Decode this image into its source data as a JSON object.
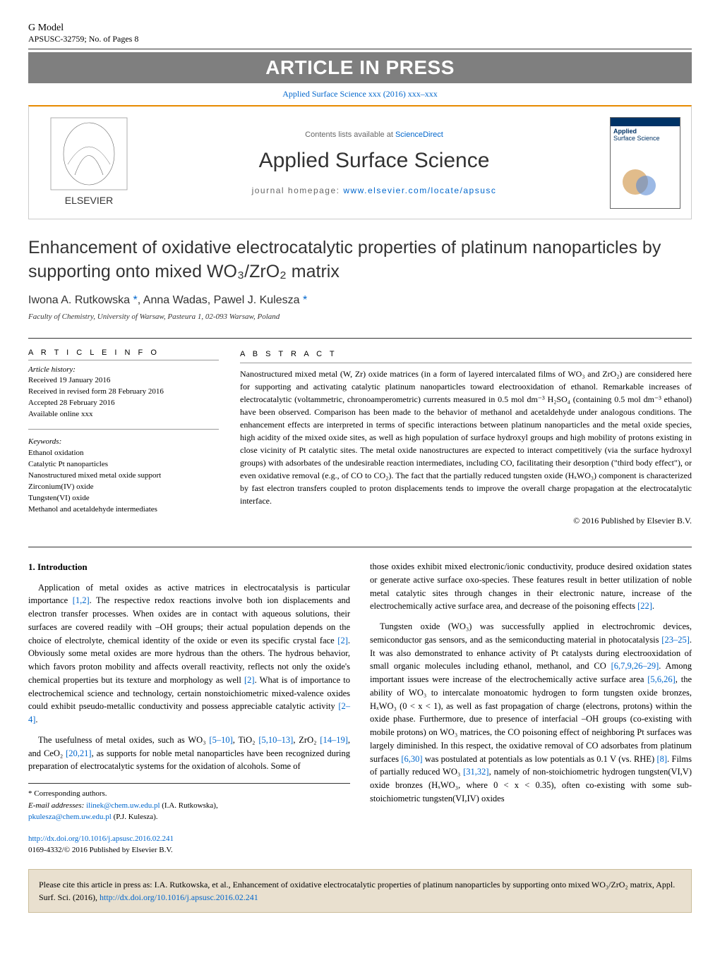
{
  "gmodel": {
    "line1": "G Model",
    "line2": "APSUSC-32759;   No. of Pages 8"
  },
  "press_bar": "ARTICLE IN PRESS",
  "journal_link_top": "Applied Surface Science xxx (2016) xxx–xxx",
  "header": {
    "contents": "Contents lists available at ",
    "contents_link": "ScienceDirect",
    "journal_name": "Applied Surface Science",
    "homepage_label": "journal homepage: ",
    "homepage_url": "www.elsevier.com/locate/apsusc",
    "cover_applied": "Applied",
    "cover_surface": "Surface Science"
  },
  "title": "Enhancement of oxidative electrocatalytic properties of platinum nanoparticles by supporting onto mixed WO₃/ZrO₂ matrix",
  "authors_html": "Iwona A. Rutkowska *, Anna Wadas, Pawel J. Kulesza *",
  "affiliation": "Faculty of Chemistry, University of Warsaw, Pasteura 1, 02-093 Warsaw, Poland",
  "article_info": {
    "heading": "A R T I C L E    I N F O",
    "history_label": "Article history:",
    "history": [
      "Received 19 January 2016",
      "Received in revised form 28 February 2016",
      "Accepted 28 February 2016",
      "Available online xxx"
    ],
    "keywords_label": "Keywords:",
    "keywords": [
      "Ethanol oxidation",
      "Catalytic Pt nanoparticles",
      "Nanostructured mixed metal oxide support",
      "Zirconium(IV) oxide",
      "Tungsten(VI) oxide",
      "Methanol and acetaldehyde intermediates"
    ]
  },
  "abstract": {
    "heading": "A B S T R A C T",
    "text": "Nanostructured mixed metal (W, Zr) oxide matrices (in a form of layered intercalated films of WO₃ and ZrO₂) are considered here for supporting and activating catalytic platinum nanoparticles toward electrooxidation of ethanol. Remarkable increases of electrocatalytic (voltammetric, chronoamperometric) currents measured in 0.5 mol dm⁻³ H₂SO₄ (containing 0.5 mol dm⁻³ ethanol) have been observed. Comparison has been made to the behavior of methanol and acetaldehyde under analogous conditions. The enhancement effects are interpreted in terms of specific interactions between platinum nanoparticles and the metal oxide species, high acidity of the mixed oxide sites, as well as high population of surface hydroxyl groups and high mobility of protons existing in close vicinity of Pt catalytic sites. The metal oxide nanostructures are expected to interact competitively (via the surface hydroxyl groups) with adsorbates of the undesirable reaction intermediates, including CO, facilitating their desorption (\"third body effect\"), or even oxidative removal (e.g., of CO to CO₂). The fact that the partially reduced tungsten oxide (HₓWO₃) component is characterized by fast electron transfers coupled to proton displacements tends to improve the overall charge propagation at the electrocatalytic interface.",
    "copyright": "© 2016 Published by Elsevier B.V."
  },
  "intro": {
    "heading": "1. Introduction",
    "p1": "Application of metal oxides as active matrices in electrocatalysis is particular importance [1,2]. The respective redox reactions involve both ion displacements and electron transfer processes. When oxides are in contact with aqueous solutions, their surfaces are covered readily with –OH groups; their actual population depends on the choice of electrolyte, chemical identity of the oxide or even its specific crystal face [2]. Obviously some metal oxides are more hydrous than the others. The hydrous behavior, which favors proton mobility and affects overall reactivity, reflects not only the oxide's chemical properties but its texture and morphology as well [2]. What is of importance to electrochemical science and technology, certain nonstoichiometric mixed-valence oxides could exhibit pseudo-metallic conductivity and possess appreciable catalytic activity [2–4].",
    "p2": "The usefulness of metal oxides, such as WO₃ [5–10], TiO₂ [5,10–13], ZrO₂ [14–19], and CeO₂ [20,21], as supports for noble metal nanoparticles have been recognized during preparation of electrocatalytic systems for the oxidation of alcohols. Some of",
    "p3": "those oxides exhibit mixed electronic/ionic conductivity, produce desired oxidation states or generate active surface oxo-species. These features result in better utilization of noble metal catalytic sites through changes in their electronic nature, increase of the electrochemically active surface area, and decrease of the poisoning effects [22].",
    "p4": "Tungsten oxide (WO₃) was successfully applied in electrochromic devices, semiconductor gas sensors, and as the semiconducting material in photocatalysis [23–25]. It was also demonstrated to enhance activity of Pt catalysts during electrooxidation of small organic molecules including ethanol, methanol, and CO [6,7,9,26–29]. Among important issues were increase of the electrochemically active surface area [5,6,26], the ability of WO₃ to intercalate monoatomic hydrogen to form tungsten oxide bronzes, HₓWO₃ (0 < x < 1), as well as fast propagation of charge (electrons, protons) within the oxide phase. Furthermore, due to presence of interfacial –OH groups (co-existing with mobile protons) on WO₃ matrices, the CO poisoning effect of neighboring Pt surfaces was largely diminished. In this respect, the oxidative removal of CO adsorbates from platinum surfaces [6,30] was postulated at potentials as low potentials as 0.1 V (vs. RHE) [8]. Films of partially reduced WO₃ [31,32], namely of non-stoichiometric hydrogen tungsten(VI,V) oxide bronzes (HₓWO₃, where 0 < x < 0.35), often co-existing with some sub-stoichiometric tungsten(VI,IV) oxides"
  },
  "footnotes": {
    "corr": "* Corresponding authors.",
    "email_label": "E-mail addresses: ",
    "email1": "ilinek@chem.uw.edu.pl",
    "email1_suffix": " (I.A. Rutkowska),",
    "email2": "pkulesza@chem.uw.edu.pl",
    "email2_suffix": " (P.J. Kulesza)."
  },
  "doi": {
    "url": "http://dx.doi.org/10.1016/j.apsusc.2016.02.241",
    "issn": "0169-4332/© 2016 Published by Elsevier B.V."
  },
  "citation_box": {
    "text_prefix": "Please cite this article in press as: I.A. Rutkowska, et al., Enhancement of oxidative electrocatalytic properties of platinum nanoparticles by supporting onto mixed WO₃/ZrO₂ matrix, Appl. Surf. Sci. (2016), ",
    "url": "http://dx.doi.org/10.1016/j.apsusc.2016.02.241"
  },
  "ref_patterns": [
    "[1,2]",
    "[2]",
    "[2–4]",
    "[5–10]",
    "[5,10–13]",
    "[14–19]",
    "[20,21]",
    "[22]",
    "[23–25]",
    "[6,7,9,26–29]",
    "[5,6,26]",
    "[6,30]",
    "[8]",
    "[31,32]"
  ],
  "colors": {
    "ref_color": "#0066cc",
    "press_bg": "#7f7f7f",
    "border_orange": "#e68a00",
    "cite_bg": "#e9e0cf",
    "cite_border": "#cbbd9a"
  }
}
